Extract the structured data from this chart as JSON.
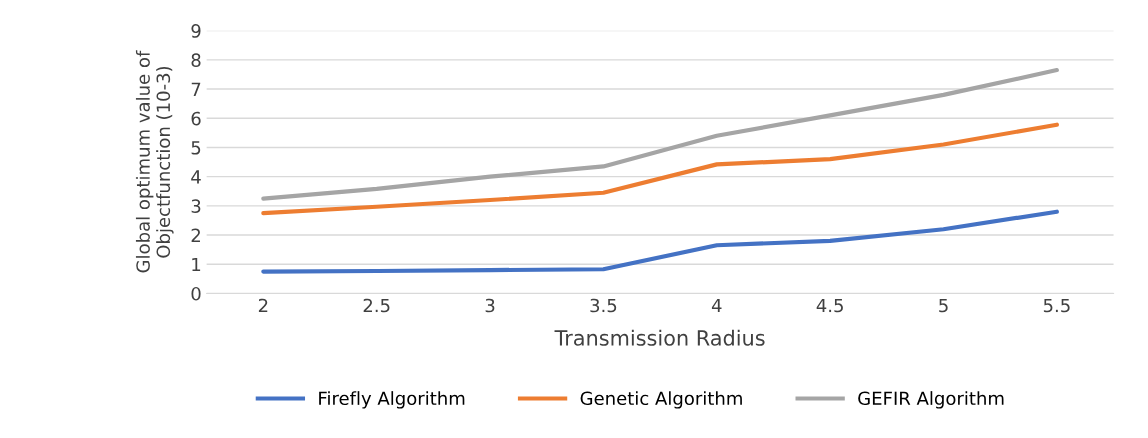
{
  "chart_data": {
    "type": "line",
    "xlabel": "Transmission Radius",
    "ylabel": "Global optimum value of\nObjectfunction (10-3)",
    "categories": [
      "2",
      "2.5",
      "3",
      "3.5",
      "4",
      "4.5",
      "5",
      "5.5"
    ],
    "series": [
      {
        "name": "Firefly Algorithm",
        "color": "#4472c4",
        "values": [
          0.75,
          0.77,
          0.8,
          0.83,
          1.65,
          1.8,
          2.2,
          2.8
        ]
      },
      {
        "name": "Genetic Algorithm",
        "color": "#ed7d31",
        "values": [
          2.75,
          2.97,
          3.2,
          3.45,
          4.42,
          4.6,
          5.1,
          5.78
        ]
      },
      {
        "name": "GEFIR Algorithm",
        "color": "#a5a5a5",
        "values": [
          3.25,
          3.58,
          4.0,
          4.35,
          5.4,
          6.1,
          6.8,
          7.65
        ]
      }
    ],
    "ylim": [
      0,
      9
    ],
    "yticks": [
      0,
      1,
      2,
      3,
      4,
      5,
      6,
      7,
      8,
      9
    ],
    "grid": "y",
    "legend": "bottom",
    "marker": "none",
    "line_style": "solid"
  }
}
